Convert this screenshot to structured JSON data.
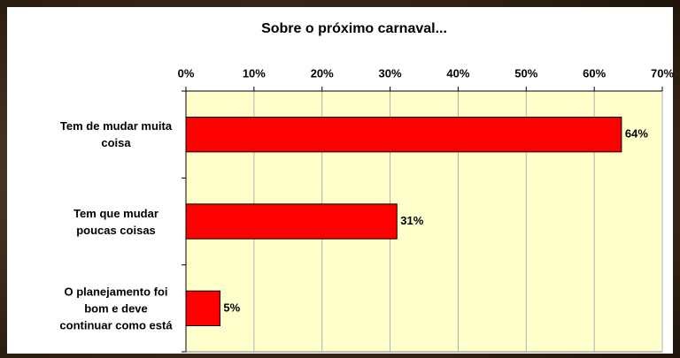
{
  "chart_data": {
    "type": "bar",
    "orientation": "horizontal",
    "title": "Sobre o próximo carnaval...",
    "categories": [
      "Tem de mudar muita coisa",
      "Tem que mudar poucas coisas",
      "O planejamento foi bom e deve continuar como está"
    ],
    "values": [
      64,
      31,
      5
    ],
    "value_labels": [
      "64%",
      "31%",
      "5%"
    ],
    "color": "#ff0000",
    "xlim": [
      0,
      70
    ],
    "xticks": [
      {
        "value": 0,
        "label": "0%"
      },
      {
        "value": 10,
        "label": "10%"
      },
      {
        "value": 20,
        "label": "20%"
      },
      {
        "value": 30,
        "label": "30%"
      },
      {
        "value": 40,
        "label": "40%"
      },
      {
        "value": 50,
        "label": "50%"
      },
      {
        "value": 60,
        "label": "60%"
      },
      {
        "value": 70,
        "label": "70%"
      }
    ],
    "grid": true
  }
}
